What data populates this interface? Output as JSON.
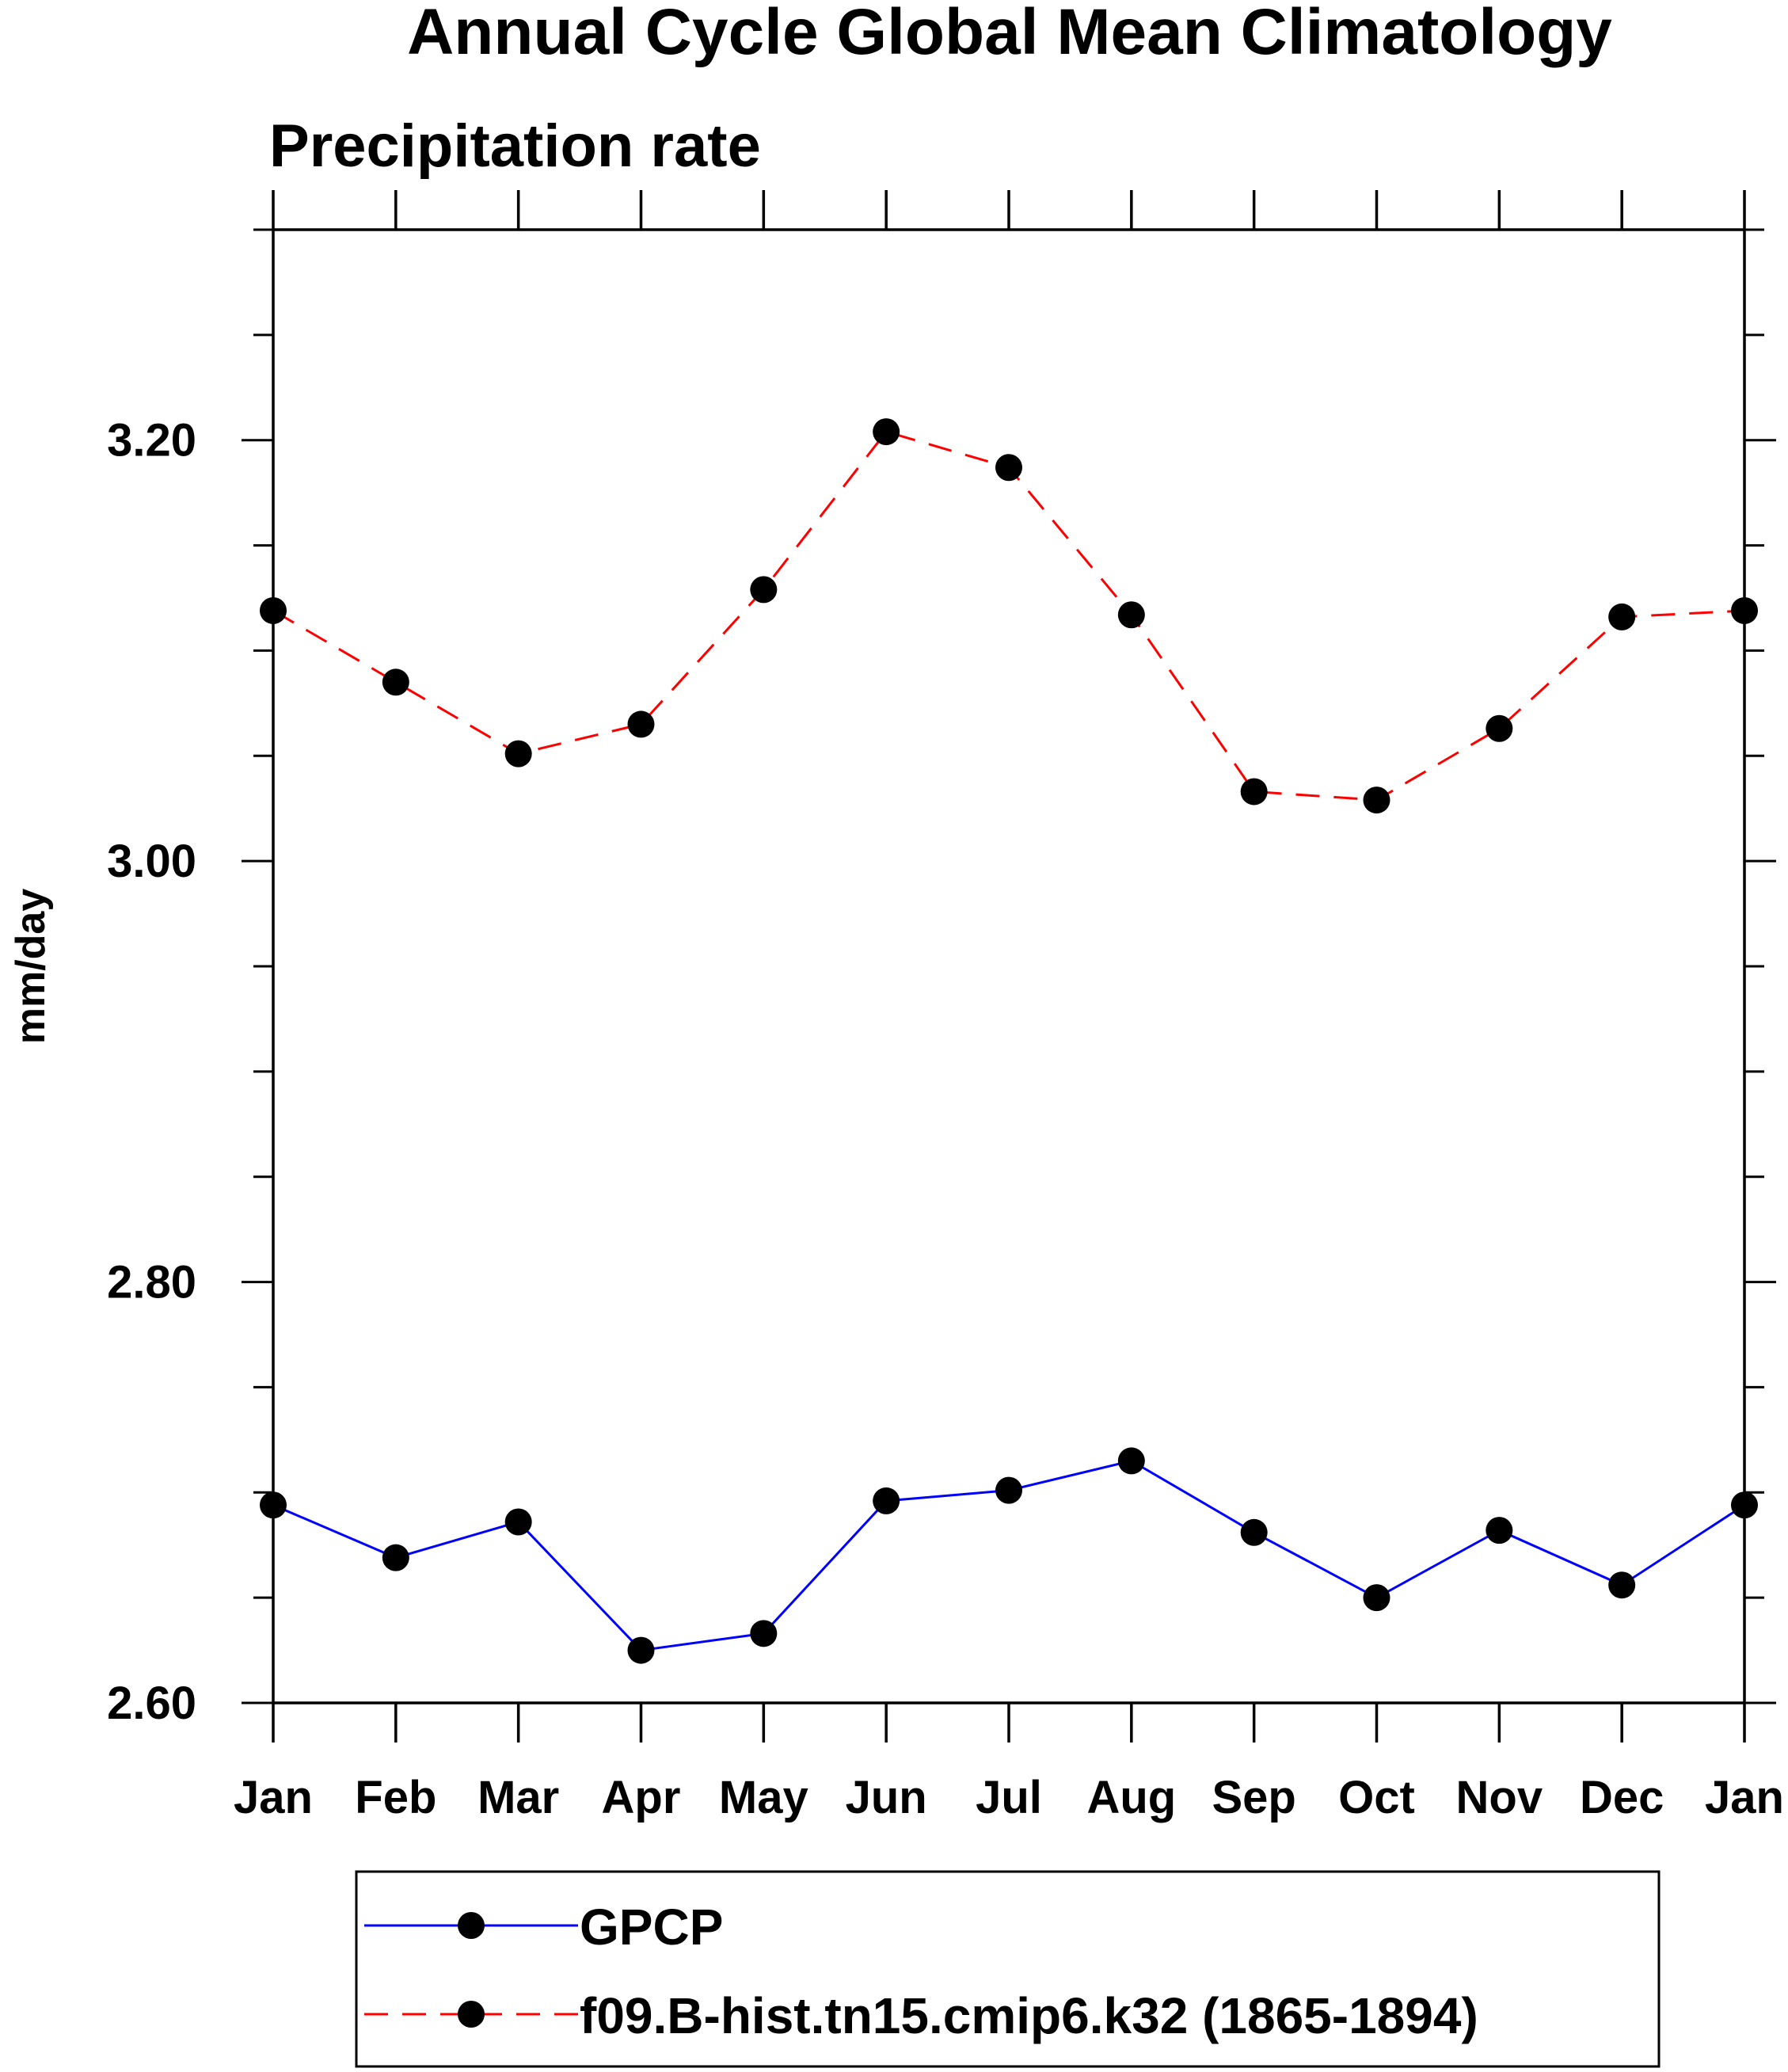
{
  "chart_data": {
    "type": "line",
    "title": "Annual Cycle Global Mean Climatology",
    "subtitle": "Precipitation rate",
    "xlabel": "",
    "ylabel": "mm/day",
    "categories": [
      "Jan",
      "Feb",
      "Mar",
      "Apr",
      "May",
      "Jun",
      "Jul",
      "Aug",
      "Sep",
      "Oct",
      "Nov",
      "Dec",
      "Jan"
    ],
    "ylim": [
      2.6,
      3.3
    ],
    "yticks": [
      "2.60",
      "2.80",
      "3.00",
      "3.20"
    ],
    "grid": false,
    "legend_position": "bottom",
    "series": [
      {
        "name": "GPCP",
        "color": "#0000ff",
        "line_style": "solid",
        "marker": "filled-circle",
        "values": [
          2.694,
          2.669,
          2.686,
          2.625,
          2.633,
          2.696,
          2.701,
          2.715,
          2.681,
          2.65,
          2.682,
          2.656,
          2.694
        ]
      },
      {
        "name": "f09.B-hist.tn15.cmip6.k32 (1865-1894)",
        "color": "#ff0000",
        "line_style": "dashed",
        "marker": "filled-circle",
        "values": [
          3.119,
          3.085,
          3.051,
          3.065,
          3.129,
          3.204,
          3.187,
          3.117,
          3.033,
          3.029,
          3.063,
          3.116,
          3.119
        ]
      }
    ]
  }
}
